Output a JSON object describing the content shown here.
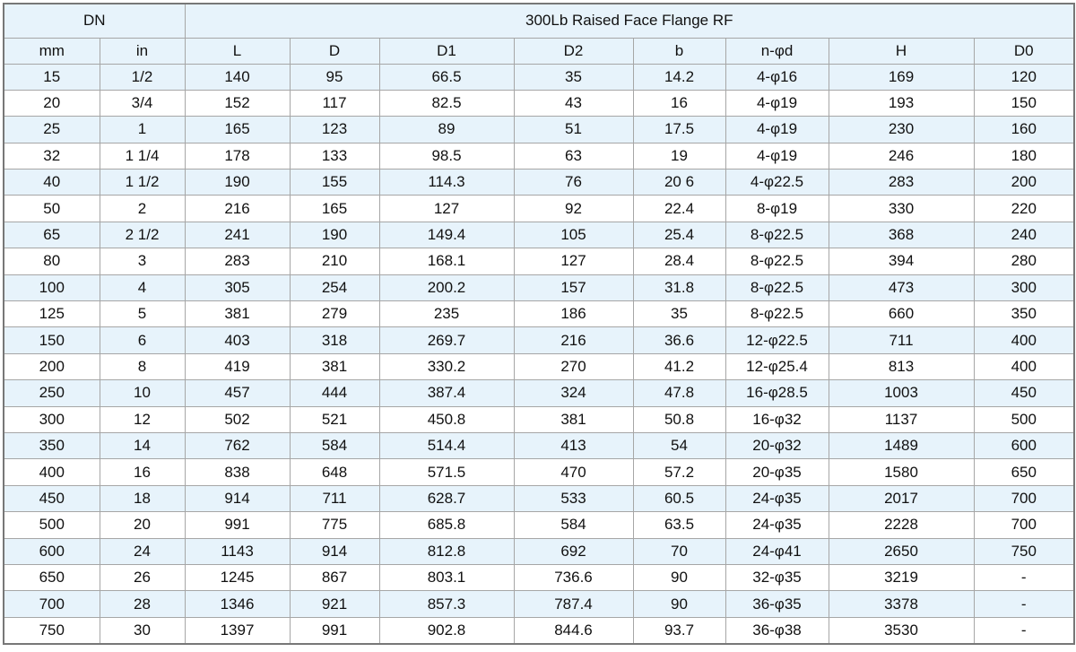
{
  "header": {
    "dn": "DN",
    "group": "300Lb Raised Face Flange RF"
  },
  "columns": [
    "mm",
    "in",
    "L",
    "D",
    "D1",
    "D2",
    "b",
    "n-φd",
    "H",
    "D0"
  ],
  "rows": [
    [
      "15",
      "1/2",
      "140",
      "95",
      "66.5",
      "35",
      "14.2",
      "4-φ16",
      "169",
      "120"
    ],
    [
      "20",
      "3/4",
      "152",
      "117",
      "82.5",
      "43",
      "16",
      "4-φ19",
      "193",
      "150"
    ],
    [
      "25",
      "1",
      "165",
      "123",
      "89",
      "51",
      "17.5",
      "4-φ19",
      "230",
      "160"
    ],
    [
      "32",
      "1 1/4",
      "178",
      "133",
      "98.5",
      "63",
      "19",
      "4-φ19",
      "246",
      "180"
    ],
    [
      "40",
      "1 1/2",
      "190",
      "155",
      "114.3",
      "76",
      "20 6",
      "4-φ22.5",
      "283",
      "200"
    ],
    [
      "50",
      "2",
      "216",
      "165",
      "127",
      "92",
      "22.4",
      "8-φ19",
      "330",
      "220"
    ],
    [
      "65",
      "2 1/2",
      "241",
      "190",
      "149.4",
      "105",
      "25.4",
      "8-φ22.5",
      "368",
      "240"
    ],
    [
      "80",
      "3",
      "283",
      "210",
      "168.1",
      "127",
      "28.4",
      "8-φ22.5",
      "394",
      "280"
    ],
    [
      "100",
      "4",
      "305",
      "254",
      "200.2",
      "157",
      "31.8",
      "8-φ22.5",
      "473",
      "300"
    ],
    [
      "125",
      "5",
      "381",
      "279",
      "235",
      "186",
      "35",
      "8-φ22.5",
      "660",
      "350"
    ],
    [
      "150",
      "6",
      "403",
      "318",
      "269.7",
      "216",
      "36.6",
      "12-φ22.5",
      "711",
      "400"
    ],
    [
      "200",
      "8",
      "419",
      "381",
      "330.2",
      "270",
      "41.2",
      "12-φ25.4",
      "813",
      "400"
    ],
    [
      "250",
      "10",
      "457",
      "444",
      "387.4",
      "324",
      "47.8",
      "16-φ28.5",
      "1003",
      "450"
    ],
    [
      "300",
      "12",
      "502",
      "521",
      "450.8",
      "381",
      "50.8",
      "16-φ32",
      "1137",
      "500"
    ],
    [
      "350",
      "14",
      "762",
      "584",
      "514.4",
      "413",
      "54",
      "20-φ32",
      "1489",
      "600"
    ],
    [
      "400",
      "16",
      "838",
      "648",
      "571.5",
      "470",
      "57.2",
      "20-φ35",
      "1580",
      "650"
    ],
    [
      "450",
      "18",
      "914",
      "711",
      "628.7",
      "533",
      "60.5",
      "24-φ35",
      "2017",
      "700"
    ],
    [
      "500",
      "20",
      "991",
      "775",
      "685.8",
      "584",
      "63.5",
      "24-φ35",
      "2228",
      "700"
    ],
    [
      "600",
      "24",
      "1143",
      "914",
      "812.8",
      "692",
      "70",
      "24-φ41",
      "2650",
      "750"
    ],
    [
      "650",
      "26",
      "1245",
      "867",
      "803.1",
      "736.6",
      "90",
      "32-φ35",
      "3219",
      "-"
    ],
    [
      "700",
      "28",
      "1346",
      "921",
      "857.3",
      "787.4",
      "90",
      "36-φ35",
      "3378",
      "-"
    ],
    [
      "750",
      "30",
      "1397",
      "991",
      "902.8",
      "844.6",
      "93.7",
      "36-φ38",
      "3530",
      "-"
    ]
  ]
}
